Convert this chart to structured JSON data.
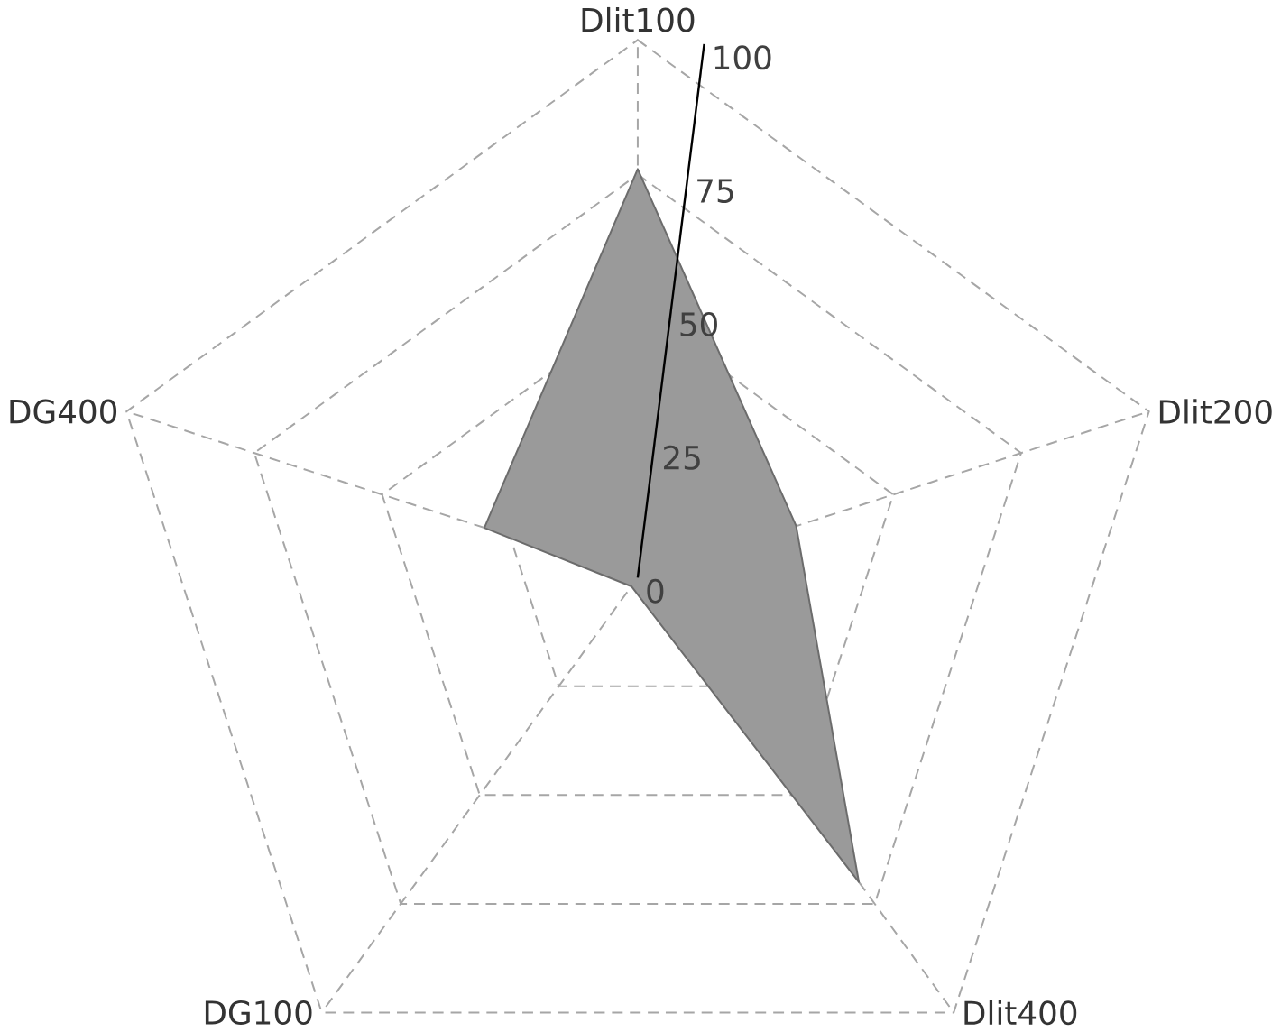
{
  "chart_data": {
    "type": "radar",
    "categories": [
      "Dlit100",
      "Dlit200",
      "Dlit400",
      "DG100",
      "DG400"
    ],
    "series": [
      {
        "color": "#9a9a9a",
        "values": [
          76,
          31,
          70,
          2,
          30
        ]
      }
    ],
    "ylim": [
      0,
      100
    ],
    "yticks": [
      0,
      25,
      50,
      75,
      100
    ],
    "grid": true
  }
}
